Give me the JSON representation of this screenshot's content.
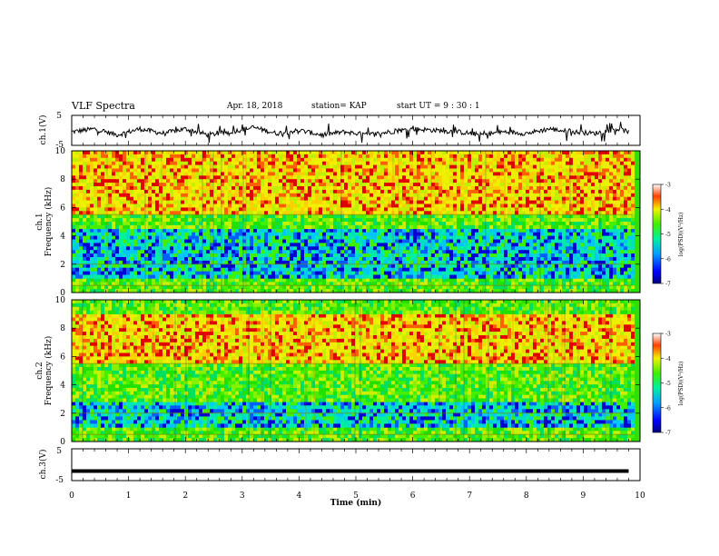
{
  "header": {
    "title": "VLF Spectra",
    "date": "Apr. 18, 2018",
    "station": "station= KAP",
    "start_ut": "start  UT =   9 : 30 : 1"
  },
  "chart_data": [
    {
      "type": "line",
      "ylabel": "ch.1(V)",
      "ylim": [
        -5,
        5
      ],
      "yticks": [
        "5",
        "-5"
      ],
      "x": [
        0.0,
        0.4,
        0.8,
        1.2,
        1.6,
        2.0,
        2.4,
        2.8,
        3.2,
        3.6,
        4.0,
        4.4,
        4.8,
        5.2,
        5.6,
        6.0,
        6.4,
        6.8,
        7.2,
        7.6,
        8.0,
        8.4,
        8.8,
        9.2,
        9.6,
        9.8
      ],
      "values": [
        -0.5,
        0.5,
        -1.5,
        0.5,
        -1.0,
        0.5,
        -1.5,
        -0.5,
        1.0,
        -1.0,
        0.0,
        -1.5,
        -0.5,
        -1.5,
        -0.5,
        0.5,
        0.0,
        -0.5,
        -1.5,
        -0.5,
        -1.0,
        0.5,
        -0.5,
        -1.0,
        0.5,
        -0.5
      ]
    },
    {
      "type": "heatmap",
      "ylabel": "ch.1\nFrequency (kHz)",
      "ylim": [
        0,
        10
      ],
      "yticks": [
        "0",
        "2",
        "4",
        "6",
        "8",
        "10"
      ],
      "colorbar": {
        "label": "log(PSD)(V²/Hz)",
        "range": [
          -7,
          -3
        ],
        "ticks": [
          "-3",
          "-4",
          "-5",
          "-6",
          "-7"
        ]
      },
      "dominant_bands_kHz": [
        {
          "from": 0,
          "to": 1,
          "level": "green"
        },
        {
          "from": 1,
          "to": 4.5,
          "level": "cyan-blue"
        },
        {
          "from": 4.5,
          "to": 5.5,
          "level": "green"
        },
        {
          "from": 5.5,
          "to": 10,
          "level": "yellow-red"
        }
      ]
    },
    {
      "type": "heatmap",
      "ylabel": "ch.2\nFrequency (kHz)",
      "ylim": [
        0,
        10
      ],
      "yticks": [
        "0",
        "2",
        "4",
        "6",
        "8",
        "10"
      ],
      "colorbar": {
        "label": "log(PSD)(V²/Hz)",
        "range": [
          -7,
          -3
        ],
        "ticks": [
          "-3",
          "-4",
          "-5",
          "-6",
          "-7"
        ]
      },
      "dominant_bands_kHz": [
        {
          "from": 0,
          "to": 1,
          "level": "green"
        },
        {
          "from": 1,
          "to": 2.8,
          "level": "cyan-blue"
        },
        {
          "from": 2.8,
          "to": 5.5,
          "level": "green"
        },
        {
          "from": 5.5,
          "to": 9,
          "level": "yellow-red"
        },
        {
          "from": 9,
          "to": 10,
          "level": "green"
        }
      ]
    },
    {
      "type": "line",
      "ylabel": "ch.3(V)",
      "ylim": [
        -5,
        5
      ],
      "yticks": [
        "5",
        "-5"
      ],
      "x": [
        0,
        9.8
      ],
      "values": [
        -2,
        -2
      ]
    }
  ],
  "xaxis": {
    "label": "Time  (min)",
    "ticks": [
      "0",
      "1",
      "2",
      "3",
      "4",
      "5",
      "6",
      "7",
      "8",
      "9",
      "10"
    ],
    "range": [
      0,
      10
    ]
  },
  "colors": {
    "blue": "#0000c8",
    "cyan": "#00c8ff",
    "green": "#22e000",
    "yellow": "#f0f000",
    "red": "#e00000"
  }
}
